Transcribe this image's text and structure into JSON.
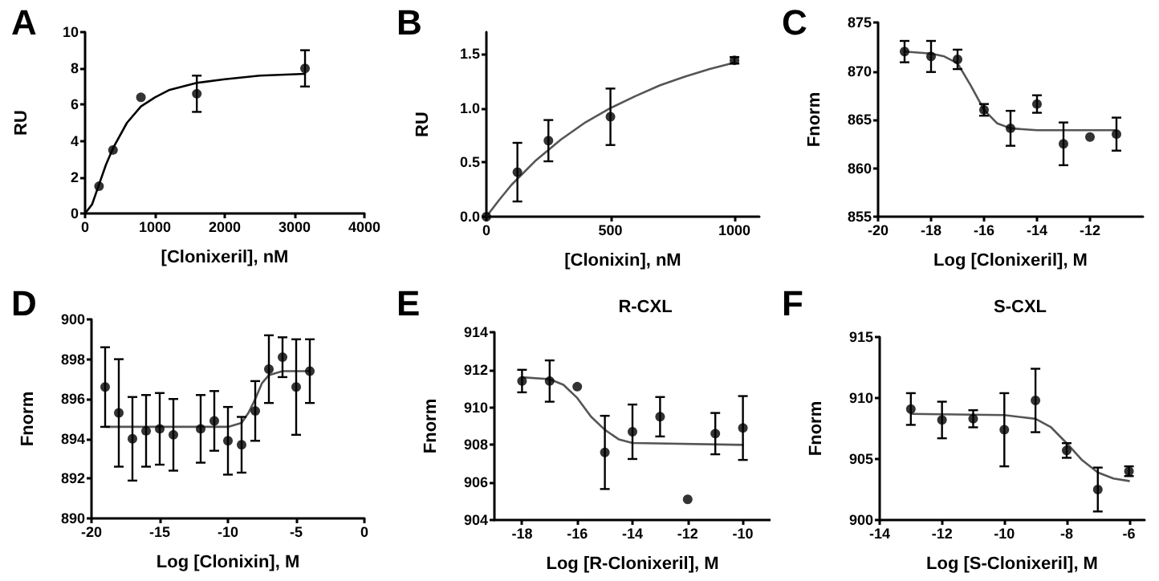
{
  "chart_data": [
    {
      "type": "scatter",
      "title": "A",
      "xlabel": "[Clonixeril], nM",
      "ylabel": "RU",
      "xlim": [
        0,
        4000
      ],
      "xticks": [
        0,
        1000,
        2000,
        3000,
        4000
      ],
      "ylim": [
        0,
        10
      ],
      "yticks": [
        0,
        2,
        4,
        6,
        8,
        10
      ],
      "marker": "circle",
      "series": [
        {
          "color": "#000000",
          "x": [
            200,
            400,
            800,
            1600,
            3150
          ],
          "values": [
            1.5,
            3.5,
            6.4,
            6.6,
            8.0
          ],
          "errors": [
            null,
            null,
            null,
            1.0,
            1.0
          ]
        },
        {
          "type": "line",
          "color": "#000000",
          "marker": "none",
          "x": [
            0,
            100,
            200,
            300,
            400,
            600,
            800,
            1000,
            1200,
            1600,
            2000,
            2500,
            3150
          ],
          "values": [
            0,
            0.5,
            1.6,
            2.7,
            3.6,
            5.0,
            5.9,
            6.4,
            6.8,
            7.2,
            7.4,
            7.6,
            7.7
          ]
        }
      ]
    },
    {
      "type": "scatter",
      "title": "B",
      "xlabel": "[Clonixin], nM",
      "ylabel": "RU",
      "xlim": [
        0,
        1100
      ],
      "xticks": [
        0,
        500,
        1000
      ],
      "ylim": [
        0,
        1.7
      ],
      "yticks": [
        {
          "value": 0,
          "label": "0.0"
        },
        0.5,
        {
          "value": 1,
          "label": "1.0"
        },
        1.5
      ],
      "marker": "circle",
      "series": [
        {
          "color": "#000000",
          "x": [
            0,
            125,
            250,
            500,
            1000
          ],
          "values": [
            0,
            0.41,
            0.7,
            0.92,
            1.44
          ],
          "errors": [
            null,
            0.27,
            0.19,
            0.26,
            0.03
          ]
        },
        {
          "type": "line",
          "color": "#555555",
          "marker": "none",
          "x": [
            0,
            50,
            100,
            200,
            300,
            400,
            500,
            600,
            700,
            800,
            900,
            1000
          ],
          "values": [
            0,
            0.15,
            0.29,
            0.52,
            0.71,
            0.87,
            1.0,
            1.11,
            1.21,
            1.29,
            1.36,
            1.42
          ]
        }
      ]
    },
    {
      "type": "scatter",
      "title": "C",
      "xlabel": "Log [Clonixeril], M",
      "ylabel": "Fnorm",
      "xlim": [
        -20,
        -10
      ],
      "xticks": [
        -20,
        -18,
        -16,
        -14,
        -12
      ],
      "ylim": [
        855,
        875
      ],
      "yticks": [
        855,
        860,
        865,
        870,
        875
      ],
      "marker": "circle",
      "series": [
        {
          "color": "#000000",
          "x": [
            -19,
            -18,
            -17,
            -16,
            -15,
            -14,
            -13,
            -12,
            -11
          ],
          "values": [
            872,
            871.5,
            871.2,
            866,
            864.1,
            866.6,
            862.5,
            863.2,
            863.5
          ],
          "errors": [
            1.1,
            1.6,
            1.0,
            0.6,
            1.8,
            0.9,
            2.2,
            null,
            1.7
          ]
        },
        {
          "type": "line",
          "color": "#555555",
          "marker": "none",
          "x": [
            -19,
            -18,
            -17.5,
            -17,
            -16.5,
            -16,
            -15.5,
            -15,
            -14,
            -11
          ],
          "values": [
            872,
            871.8,
            871.5,
            870.8,
            868.5,
            866,
            864.6,
            864.1,
            863.9,
            863.9
          ]
        }
      ]
    },
    {
      "type": "scatter",
      "title": "D",
      "xlabel": "Log [Clonixin], M",
      "ylabel": "Fnorm",
      "xlim": [
        -20,
        0
      ],
      "xticks": [
        -20,
        -15,
        -10,
        -5,
        0
      ],
      "ylim": [
        890,
        900
      ],
      "yticks": [
        890,
        892,
        894,
        896,
        898,
        900
      ],
      "marker": "circle",
      "series": [
        {
          "color": "#000000",
          "x": [
            -19,
            -18,
            -17,
            -16,
            -15,
            -14,
            -12,
            -11,
            -10,
            -9,
            -8,
            -7,
            -6,
            -5,
            -4
          ],
          "values": [
            896.6,
            895.3,
            894.0,
            894.4,
            894.5,
            894.2,
            894.5,
            894.9,
            893.9,
            893.7,
            895.4,
            897.5,
            898.1,
            896.6,
            897.4
          ],
          "errors": [
            2.0,
            2.7,
            2.1,
            1.8,
            1.8,
            1.8,
            1.7,
            1.5,
            1.7,
            1.4,
            1.5,
            1.7,
            1.0,
            2.4,
            1.6
          ]
        },
        {
          "type": "line",
          "color": "#555555",
          "marker": "none",
          "x": [
            -19,
            -10,
            -9,
            -8.5,
            -8,
            -7.5,
            -7,
            -6,
            -4
          ],
          "values": [
            894.6,
            894.6,
            894.8,
            895.3,
            896.0,
            896.8,
            897.2,
            897.4,
            897.4
          ]
        }
      ]
    },
    {
      "type": "scatter",
      "title": "E",
      "subtitle": "R-CXL",
      "xlabel": "Log [R-Clonixeril], M",
      "ylabel": "Fnorm",
      "xlim": [
        -19,
        -9
      ],
      "xticks": [
        -18,
        -16,
        -14,
        -12,
        -10
      ],
      "ylim": [
        904,
        914
      ],
      "yticks": [
        904,
        906,
        908,
        910,
        912,
        914
      ],
      "marker": "circle",
      "series": [
        {
          "color": "#000000",
          "x": [
            -18,
            -17,
            -16,
            -15,
            -14,
            -13,
            -12,
            -11,
            -10
          ],
          "values": [
            911.4,
            911.4,
            911.1,
            907.6,
            908.7,
            909.5,
            905.1,
            908.6,
            908.9
          ],
          "errors": [
            0.6,
            1.1,
            null,
            1.95,
            1.45,
            1.05,
            null,
            1.1,
            1.7
          ]
        },
        {
          "type": "line",
          "color": "#555555",
          "marker": "none",
          "x": [
            -18,
            -17,
            -16.5,
            -16,
            -15.5,
            -15,
            -14.5,
            -14,
            -10
          ],
          "values": [
            911.6,
            911.5,
            911.2,
            910.5,
            909.5,
            908.8,
            908.3,
            908.1,
            908.0
          ]
        }
      ]
    },
    {
      "type": "scatter",
      "title": "F",
      "subtitle": "S-CXL",
      "xlabel": "Log [S-Clonixeril], M",
      "ylabel": "Fnorm",
      "xlim": [
        -14,
        -5.5
      ],
      "xticks": [
        -14,
        -12,
        -10,
        -8,
        -6
      ],
      "ylim": [
        900,
        915
      ],
      "yticks": [
        900,
        905,
        910,
        915
      ],
      "marker": "circle",
      "series": [
        {
          "color": "#000000",
          "x": [
            -13,
            -12,
            -11,
            -10,
            -9,
            -8,
            -7,
            -6
          ],
          "values": [
            909.1,
            908.2,
            908.3,
            907.4,
            909.8,
            905.7,
            902.5,
            904.0
          ],
          "errors": [
            1.3,
            1.5,
            0.7,
            3.0,
            2.6,
            0.6,
            1.8,
            0.4
          ]
        },
        {
          "type": "line",
          "color": "#555555",
          "marker": "none",
          "x": [
            -13,
            -10,
            -9,
            -8.5,
            -8,
            -7.5,
            -7,
            -6.5,
            -6
          ],
          "values": [
            908.7,
            908.6,
            908.3,
            907.6,
            906.3,
            904.9,
            903.9,
            903.4,
            903.2
          ]
        }
      ]
    }
  ]
}
